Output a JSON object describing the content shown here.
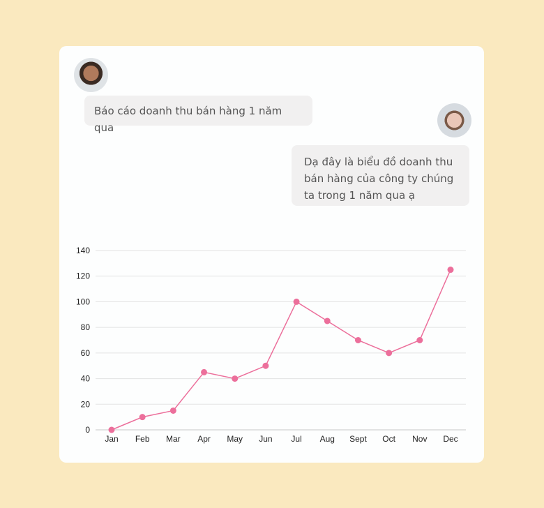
{
  "chat": {
    "messages": [
      {
        "sender": "user",
        "text": "Báo cáo doanh thu bán hàng 1 năm qua"
      },
      {
        "sender": "assistant",
        "text": "Dạ đây là biểu đồ doanh thu bán hàng của công ty chúng ta trong 1 năm qua ạ"
      }
    ]
  },
  "colors": {
    "background": "#fae9bf",
    "line": "#ec6f9b",
    "grid": "#e3e3e3"
  },
  "chart_data": {
    "type": "line",
    "categories": [
      "Jan",
      "Feb",
      "Mar",
      "Apr",
      "May",
      "Jun",
      "Jul",
      "Aug",
      "Sept",
      "Oct",
      "Nov",
      "Dec"
    ],
    "values": [
      0,
      10,
      15,
      45,
      40,
      50,
      100,
      85,
      70,
      60,
      70,
      125
    ],
    "ylim": [
      0,
      140
    ],
    "yticks": [
      0,
      20,
      40,
      60,
      80,
      100,
      120,
      140
    ],
    "grid": true,
    "title": "",
    "xlabel": "",
    "ylabel": ""
  }
}
